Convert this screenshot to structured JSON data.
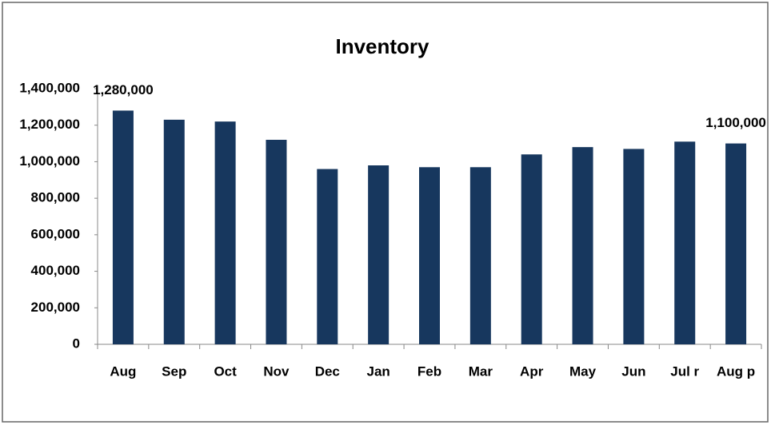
{
  "chart_data": {
    "type": "bar",
    "title": "Inventory",
    "categories": [
      "Aug",
      "Sep",
      "Oct",
      "Nov",
      "Dec",
      "Jan",
      "Feb",
      "Mar",
      "Apr",
      "May",
      "Jun",
      "Jul r",
      "Aug p"
    ],
    "values": [
      1280000,
      1230000,
      1220000,
      1120000,
      960000,
      980000,
      970000,
      970000,
      1040000,
      1080000,
      1070000,
      1110000,
      1100000
    ],
    "value_labels": [
      "1,280,000",
      null,
      null,
      null,
      null,
      null,
      null,
      null,
      null,
      null,
      null,
      null,
      "1,100,000"
    ],
    "color": "#17375e",
    "ylim": [
      0,
      1400000
    ],
    "yticks": [
      0,
      {
        "value": 200000,
        "label": "200,000"
      },
      {
        "value": 400000,
        "label": "400,000"
      },
      {
        "value": 600000,
        "label": "600,000"
      },
      {
        "value": 800000,
        "label": "800,000"
      },
      {
        "value": 1000000,
        "label": "1,000,000"
      },
      {
        "value": 1200000,
        "label": "1,200,000"
      },
      {
        "value": 1400000,
        "label": "1,400,000"
      }
    ],
    "grid": false
  }
}
